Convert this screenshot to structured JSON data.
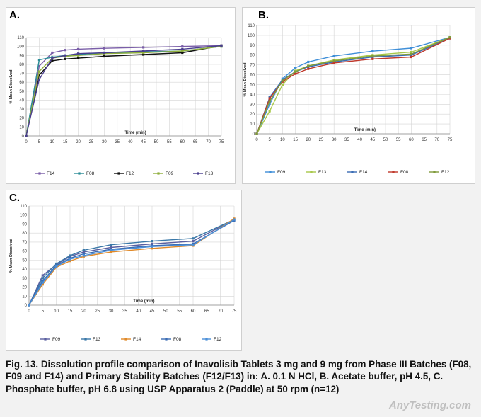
{
  "panels": [
    {
      "label": "A."
    },
    {
      "label": "B."
    },
    {
      "label": "C."
    }
  ],
  "caption": "Fig. 13. Dissolution profile comparison of Inavolisib Tablets 3 mg and 9 mg from Phase III Batches (F08, F09 and F14) and Primary Stability Batches (F12/F13) in: A. 0.1 N HCl, B. Acetate buffer, pH 4.5, C. Phosphate buffer, pH 6.8 using USP Apparatus 2 (Paddle) at 50 rpm (n=12)",
  "watermark": "AnyTesting.com",
  "chart_data": [
    {
      "type": "line",
      "title": "",
      "xlabel": "Time (min)",
      "ylabel": "% Mean Dissolved",
      "xlim": [
        0,
        75
      ],
      "ylim": [
        0,
        110
      ],
      "x_ticks": [
        0,
        5,
        10,
        15,
        20,
        25,
        30,
        35,
        40,
        45,
        50,
        55,
        60,
        65,
        70,
        75
      ],
      "y_ticks": [
        0,
        10,
        20,
        30,
        40,
        50,
        60,
        70,
        80,
        90,
        100,
        110
      ],
      "grid": "major gridlines",
      "legend": "bottom",
      "x": [
        0,
        5,
        10,
        15,
        20,
        30,
        45,
        60,
        75
      ],
      "series": [
        {
          "name": "F14",
          "color": "#7a5ea8",
          "values": [
            0,
            78,
            93,
            96,
            97,
            98,
            99,
            100,
            101
          ]
        },
        {
          "name": "F08",
          "color": "#2a8c96",
          "values": [
            0,
            85,
            88,
            90,
            91,
            93,
            94,
            95,
            100
          ]
        },
        {
          "name": "F12",
          "color": "#111111",
          "values": [
            0,
            68,
            84,
            86,
            87,
            89,
            91,
            93,
            101
          ]
        },
        {
          "name": "F09",
          "color": "#8fae3c",
          "values": [
            0,
            72,
            87,
            89,
            90,
            92,
            93,
            95,
            100
          ]
        },
        {
          "name": "F13",
          "color": "#4a3e8e",
          "values": [
            0,
            63,
            87,
            90,
            92,
            93,
            95,
            97,
            101
          ]
        }
      ]
    },
    {
      "type": "line",
      "title": "",
      "xlabel": "Time (min)",
      "ylabel": "% Mean Dissolved",
      "xlim": [
        0,
        75
      ],
      "ylim": [
        0,
        110
      ],
      "x_ticks": [
        0,
        5,
        10,
        15,
        20,
        25,
        30,
        35,
        40,
        45,
        50,
        55,
        60,
        65,
        70,
        75
      ],
      "y_ticks": [
        0,
        10,
        20,
        30,
        40,
        50,
        60,
        70,
        80,
        90,
        100,
        110
      ],
      "grid": "major gridlines",
      "legend": "bottom",
      "x": [
        0,
        5,
        10,
        15,
        20,
        30,
        45,
        60,
        75
      ],
      "series": [
        {
          "name": "F09",
          "color": "#3f8fd8",
          "values": [
            0,
            30,
            56,
            67,
            73,
            79,
            84,
            87,
            98
          ]
        },
        {
          "name": "F13",
          "color": "#a8c84a",
          "values": [
            0,
            23,
            50,
            64,
            69,
            75,
            80,
            83,
            98
          ]
        },
        {
          "name": "F14",
          "color": "#3a6cb4",
          "values": [
            0,
            37,
            55,
            63,
            68,
            73,
            78,
            80,
            97
          ]
        },
        {
          "name": "F08",
          "color": "#c0392b",
          "values": [
            0,
            36,
            53,
            61,
            66,
            72,
            76,
            78,
            97
          ]
        },
        {
          "name": "F12",
          "color": "#7f9a3a",
          "values": [
            0,
            33,
            54,
            63,
            69,
            74,
            79,
            81,
            98
          ]
        }
      ]
    },
    {
      "type": "line",
      "title": "",
      "xlabel": "Time (min)",
      "ylabel": "% Mean Dissolved",
      "xlim": [
        0,
        75
      ],
      "ylim": [
        0,
        110
      ],
      "x_ticks": [
        0,
        5,
        10,
        15,
        20,
        25,
        30,
        35,
        40,
        45,
        50,
        55,
        60,
        65,
        70,
        75
      ],
      "y_ticks": [
        0,
        10,
        20,
        30,
        40,
        50,
        60,
        70,
        80,
        90,
        100,
        110
      ],
      "grid": "major gridlines",
      "legend": "bottom",
      "x": [
        0,
        5,
        10,
        15,
        20,
        30,
        45,
        60,
        75
      ],
      "series": [
        {
          "name": "F09",
          "color": "#5a5fa0",
          "values": [
            0,
            33,
            45,
            54,
            59,
            64,
            68,
            71,
            95
          ]
        },
        {
          "name": "F13",
          "color": "#3a78a8",
          "values": [
            0,
            30,
            46,
            55,
            61,
            67,
            71,
            74,
            95
          ]
        },
        {
          "name": "F14",
          "color": "#e08a2a",
          "values": [
            0,
            23,
            42,
            49,
            54,
            59,
            63,
            66,
            96
          ]
        },
        {
          "name": "F08",
          "color": "#3a6cb4",
          "values": [
            0,
            27,
            44,
            52,
            57,
            62,
            66,
            68,
            94
          ]
        },
        {
          "name": "F12",
          "color": "#4a8fd8",
          "values": [
            0,
            25,
            43,
            51,
            55,
            61,
            65,
            67,
            95
          ]
        }
      ]
    }
  ]
}
